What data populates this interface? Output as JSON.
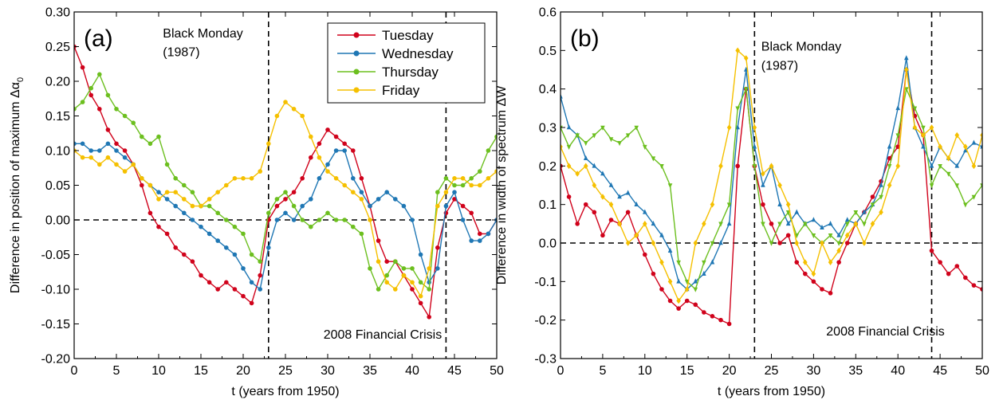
{
  "colors": {
    "Tuesday": "#d0021b",
    "Wednesday": "#1f77b4",
    "Thursday": "#6cbf1f",
    "Friday": "#f5c000",
    "axis": "#000000"
  },
  "chart_data": [
    {
      "type": "line",
      "panel_label": "(a)",
      "xlabel": "t (years from 1950)",
      "ylabel": "Difference in position of maximum Δα",
      "ylabel_sub": "0",
      "xlim": [
        0,
        50
      ],
      "ylim": [
        -0.2,
        0.3
      ],
      "xticks": [
        0,
        5,
        10,
        15,
        20,
        25,
        30,
        35,
        40,
        45,
        50
      ],
      "yticks": [
        -0.2,
        -0.15,
        -0.1,
        -0.05,
        0.0,
        0.05,
        0.1,
        0.15,
        0.2,
        0.25,
        0.3
      ],
      "ytick_labels": [
        "-0.20",
        "-0.15",
        "-0.10",
        "-0.05",
        "0.00",
        "0.05",
        "0.10",
        "0.15",
        "0.20",
        "0.25",
        "0.30"
      ],
      "hline": 0,
      "vlines": [
        23,
        44
      ],
      "annotations": [
        {
          "text": "Black Monday",
          "x": 10.5,
          "y": 0.263
        },
        {
          "text": "(1987)",
          "x": 10.5,
          "y": 0.236
        },
        {
          "text": "2008 Financial Crisis",
          "x": 29.5,
          "y": -0.171
        }
      ],
      "legend": {
        "placement": "top-center",
        "entries": [
          "Tuesday",
          "Wednesday",
          "Thursday",
          "Friday"
        ]
      },
      "series": [
        {
          "name": "Tuesday",
          "marker": "circle",
          "x": [
            0,
            1,
            2,
            3,
            4,
            5,
            6,
            7,
            8,
            9,
            10,
            11,
            12,
            13,
            14,
            15,
            16,
            17,
            18,
            19,
            20,
            21,
            22,
            23,
            24,
            25,
            26,
            27,
            28,
            29,
            30,
            31,
            32,
            33,
            34,
            35,
            36,
            37,
            38,
            39,
            40,
            41,
            42,
            43,
            44,
            45,
            46,
            47,
            48,
            49,
            50
          ],
          "y": [
            0.25,
            0.22,
            0.18,
            0.16,
            0.13,
            0.11,
            0.1,
            0.08,
            0.05,
            0.01,
            -0.01,
            -0.02,
            -0.04,
            -0.05,
            -0.06,
            -0.08,
            -0.09,
            -0.1,
            -0.09,
            -0.1,
            -0.11,
            -0.12,
            -0.08,
            0.0,
            0.02,
            0.03,
            0.04,
            0.06,
            0.09,
            0.11,
            0.13,
            0.12,
            0.11,
            0.1,
            0.06,
            0.02,
            -0.03,
            -0.06,
            -0.06,
            -0.08,
            -0.1,
            -0.12,
            -0.14,
            -0.04,
            0.01,
            0.03,
            0.02,
            0.01,
            -0.02,
            -0.02,
            0.0
          ]
        },
        {
          "name": "Wednesday",
          "marker": "circle",
          "x": [
            0,
            1,
            2,
            3,
            4,
            5,
            6,
            7,
            8,
            9,
            10,
            11,
            12,
            13,
            14,
            15,
            16,
            17,
            18,
            19,
            20,
            21,
            22,
            23,
            24,
            25,
            26,
            27,
            28,
            29,
            30,
            31,
            32,
            33,
            34,
            35,
            36,
            37,
            38,
            39,
            40,
            41,
            42,
            43,
            44,
            45,
            46,
            47,
            48,
            49,
            50
          ],
          "y": [
            0.11,
            0.11,
            0.1,
            0.1,
            0.11,
            0.1,
            0.09,
            0.08,
            0.06,
            0.05,
            0.04,
            0.03,
            0.02,
            0.01,
            0.0,
            -0.01,
            -0.02,
            -0.03,
            -0.04,
            -0.05,
            -0.07,
            -0.09,
            -0.1,
            -0.04,
            0.0,
            0.01,
            0.0,
            0.02,
            0.03,
            0.06,
            0.08,
            0.1,
            0.1,
            0.06,
            0.04,
            0.02,
            0.03,
            0.04,
            0.03,
            0.02,
            0.0,
            -0.05,
            -0.09,
            -0.07,
            0.02,
            0.04,
            0.0,
            -0.03,
            -0.03,
            -0.02,
            0.0
          ]
        },
        {
          "name": "Thursday",
          "marker": "circle",
          "x": [
            0,
            1,
            2,
            3,
            4,
            5,
            6,
            7,
            8,
            9,
            10,
            11,
            12,
            13,
            14,
            15,
            16,
            17,
            18,
            19,
            20,
            21,
            22,
            23,
            24,
            25,
            26,
            27,
            28,
            29,
            30,
            31,
            32,
            33,
            34,
            35,
            36,
            37,
            38,
            39,
            40,
            41,
            42,
            43,
            44,
            45,
            46,
            47,
            48,
            49,
            50
          ],
          "y": [
            0.16,
            0.17,
            0.19,
            0.21,
            0.18,
            0.16,
            0.15,
            0.14,
            0.12,
            0.11,
            0.12,
            0.08,
            0.06,
            0.05,
            0.04,
            0.02,
            0.02,
            0.01,
            0.0,
            -0.01,
            -0.02,
            -0.05,
            -0.06,
            0.01,
            0.03,
            0.04,
            0.02,
            0.0,
            -0.01,
            0.0,
            0.01,
            0.0,
            0.0,
            -0.01,
            -0.02,
            -0.07,
            -0.1,
            -0.08,
            -0.06,
            -0.07,
            -0.07,
            -0.09,
            -0.1,
            0.04,
            0.06,
            0.05,
            0.05,
            0.06,
            0.07,
            0.1,
            0.12
          ]
        },
        {
          "name": "Friday",
          "marker": "circle",
          "x": [
            0,
            1,
            2,
            3,
            4,
            5,
            6,
            7,
            8,
            9,
            10,
            11,
            12,
            13,
            14,
            15,
            16,
            17,
            18,
            19,
            20,
            21,
            22,
            23,
            24,
            25,
            26,
            27,
            28,
            29,
            30,
            31,
            32,
            33,
            34,
            35,
            36,
            37,
            38,
            39,
            40,
            41,
            42,
            43,
            44,
            45,
            46,
            47,
            48,
            49,
            50
          ],
          "y": [
            0.1,
            0.09,
            0.09,
            0.08,
            0.09,
            0.08,
            0.07,
            0.08,
            0.06,
            0.05,
            0.03,
            0.04,
            0.04,
            0.03,
            0.02,
            0.02,
            0.03,
            0.04,
            0.05,
            0.06,
            0.06,
            0.06,
            0.07,
            0.11,
            0.15,
            0.17,
            0.16,
            0.15,
            0.12,
            0.09,
            0.07,
            0.06,
            0.05,
            0.04,
            0.03,
            0.0,
            -0.06,
            -0.09,
            -0.1,
            -0.08,
            -0.09,
            -0.11,
            -0.07,
            0.02,
            0.04,
            0.06,
            0.06,
            0.05,
            0.05,
            0.06,
            0.07
          ]
        }
      ]
    },
    {
      "type": "line",
      "panel_label": "(b)",
      "xlabel": "t (years from 1950)",
      "ylabel": "Difference in width of spectrum ΔW",
      "xlim": [
        0,
        50
      ],
      "ylim": [
        -0.3,
        0.6
      ],
      "xticks": [
        0,
        5,
        10,
        15,
        20,
        25,
        30,
        35,
        40,
        45,
        50
      ],
      "yticks": [
        -0.3,
        -0.2,
        -0.1,
        0.0,
        0.1,
        0.2,
        0.3,
        0.4,
        0.5,
        0.6
      ],
      "ytick_labels": [
        "-0.3",
        "-0.2",
        "-0.1",
        "0.0",
        "0.1",
        "0.2",
        "0.3",
        "0.4",
        "0.5",
        "0.6"
      ],
      "hline": 0,
      "vlines": [
        23,
        44
      ],
      "annotations": [
        {
          "text": "Black Monday",
          "x": 23.8,
          "y": 0.5
        },
        {
          "text": "(1987)",
          "x": 23.8,
          "y": 0.45
        },
        {
          "text": "2008 Financial Crisis",
          "x": 31.5,
          "y": -0.24
        }
      ],
      "series": [
        {
          "name": "Tuesday",
          "marker": "circle",
          "x": [
            0,
            1,
            2,
            3,
            4,
            5,
            6,
            7,
            8,
            9,
            10,
            11,
            12,
            13,
            14,
            15,
            16,
            17,
            18,
            19,
            20,
            21,
            22,
            23,
            24,
            25,
            26,
            27,
            28,
            29,
            30,
            31,
            32,
            33,
            34,
            35,
            36,
            37,
            38,
            39,
            40,
            41,
            42,
            43,
            44,
            45,
            46,
            47,
            48,
            49,
            50
          ],
          "y": [
            0.2,
            0.12,
            0.05,
            0.1,
            0.08,
            0.02,
            0.06,
            0.05,
            0.08,
            0.02,
            -0.03,
            -0.08,
            -0.12,
            -0.15,
            -0.17,
            -0.15,
            -0.16,
            -0.18,
            -0.19,
            -0.2,
            -0.21,
            0.2,
            0.4,
            0.2,
            0.1,
            0.05,
            0.0,
            0.02,
            -0.05,
            -0.08,
            -0.1,
            -0.12,
            -0.13,
            -0.05,
            0.0,
            0.05,
            0.08,
            0.12,
            0.16,
            0.22,
            0.25,
            0.45,
            0.33,
            0.28,
            -0.02,
            -0.05,
            -0.08,
            -0.06,
            -0.09,
            -0.11,
            -0.12
          ]
        },
        {
          "name": "Wednesday",
          "marker": "triangle-up",
          "x": [
            0,
            1,
            2,
            3,
            4,
            5,
            6,
            7,
            8,
            9,
            10,
            11,
            12,
            13,
            14,
            15,
            16,
            17,
            18,
            19,
            20,
            21,
            22,
            23,
            24,
            25,
            26,
            27,
            28,
            29,
            30,
            31,
            32,
            33,
            34,
            35,
            36,
            37,
            38,
            39,
            40,
            41,
            42,
            43,
            44,
            45,
            46,
            47,
            48,
            49,
            50
          ],
          "y": [
            0.38,
            0.3,
            0.28,
            0.22,
            0.2,
            0.18,
            0.15,
            0.12,
            0.13,
            0.1,
            0.08,
            0.05,
            0.02,
            -0.02,
            -0.1,
            -0.12,
            -0.1,
            -0.08,
            -0.05,
            0.0,
            0.05,
            0.3,
            0.45,
            0.25,
            0.15,
            0.2,
            0.1,
            0.05,
            0.08,
            0.05,
            0.06,
            0.04,
            0.05,
            0.02,
            0.06,
            0.05,
            0.08,
            0.1,
            0.15,
            0.25,
            0.35,
            0.48,
            0.3,
            0.25,
            0.2,
            0.25,
            0.22,
            0.2,
            0.24,
            0.26,
            0.25
          ]
        },
        {
          "name": "Thursday",
          "marker": "triangle-down",
          "x": [
            0,
            1,
            2,
            3,
            4,
            5,
            6,
            7,
            8,
            9,
            10,
            11,
            12,
            13,
            14,
            15,
            16,
            17,
            18,
            19,
            20,
            21,
            22,
            23,
            24,
            25,
            26,
            27,
            28,
            29,
            30,
            31,
            32,
            33,
            34,
            35,
            36,
            37,
            38,
            39,
            40,
            41,
            42,
            43,
            44,
            45,
            46,
            47,
            48,
            49,
            50
          ],
          "y": [
            0.3,
            0.25,
            0.28,
            0.26,
            0.28,
            0.3,
            0.27,
            0.26,
            0.28,
            0.3,
            0.25,
            0.22,
            0.2,
            0.15,
            -0.05,
            -0.1,
            -0.12,
            -0.05,
            0.0,
            0.05,
            0.1,
            0.35,
            0.4,
            0.2,
            0.05,
            0.0,
            0.05,
            0.08,
            0.02,
            0.05,
            0.02,
            0.0,
            0.02,
            0.0,
            0.05,
            0.08,
            0.05,
            0.1,
            0.12,
            0.2,
            0.28,
            0.4,
            0.35,
            0.3,
            0.15,
            0.2,
            0.18,
            0.15,
            0.1,
            0.12,
            0.15
          ]
        },
        {
          "name": "Friday",
          "marker": "diamond",
          "x": [
            0,
            1,
            2,
            3,
            4,
            5,
            6,
            7,
            8,
            9,
            10,
            11,
            12,
            13,
            14,
            15,
            16,
            17,
            18,
            19,
            20,
            21,
            22,
            23,
            24,
            25,
            26,
            27,
            28,
            29,
            30,
            31,
            32,
            33,
            34,
            35,
            36,
            37,
            38,
            39,
            40,
            41,
            42,
            43,
            44,
            45,
            46,
            47,
            48,
            49,
            50
          ],
          "y": [
            0.25,
            0.2,
            0.18,
            0.2,
            0.15,
            0.12,
            0.1,
            0.05,
            0.0,
            0.02,
            0.05,
            0.0,
            -0.05,
            -0.1,
            -0.15,
            -0.12,
            0.0,
            0.05,
            0.1,
            0.2,
            0.3,
            0.5,
            0.48,
            0.3,
            0.18,
            0.2,
            0.15,
            0.1,
            0.0,
            -0.05,
            -0.08,
            0.0,
            -0.05,
            -0.02,
            0.02,
            0.05,
            0.0,
            0.05,
            0.08,
            0.15,
            0.2,
            0.45,
            0.3,
            0.28,
            0.3,
            0.25,
            0.22,
            0.28,
            0.25,
            0.2,
            0.28
          ]
        }
      ]
    }
  ]
}
